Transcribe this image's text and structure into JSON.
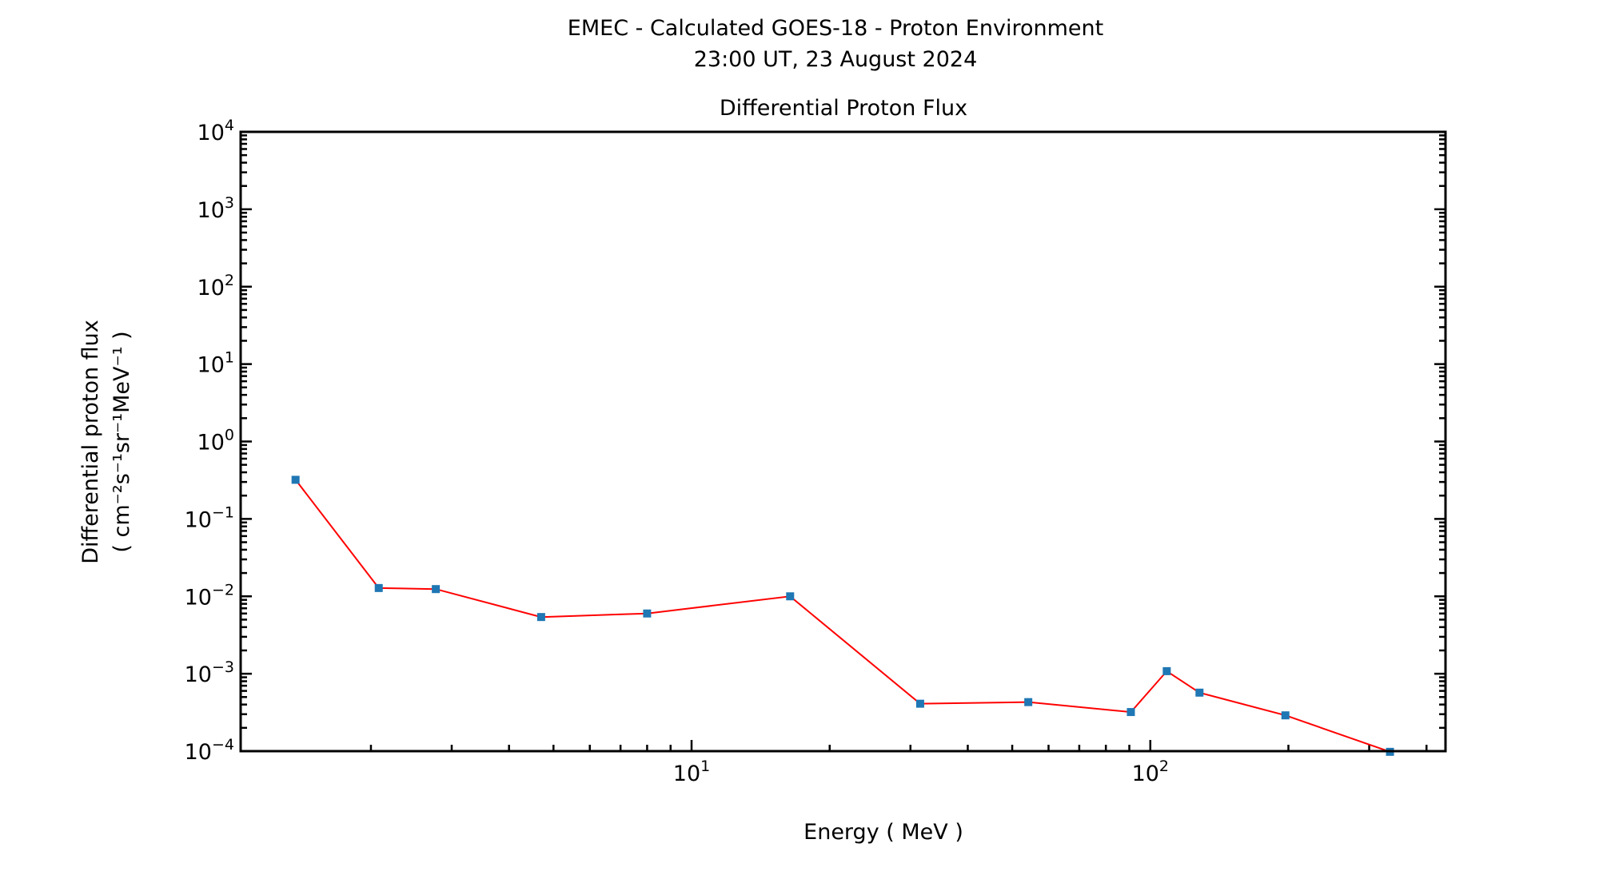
{
  "header": {
    "title": "EMEC - Calculated GOES-18 - Proton Environment",
    "subtitle": "23:00 UT, 23 August 2024"
  },
  "chart_data": {
    "type": "line",
    "title": "Differential Proton Flux",
    "xlabel": "Energy ( MeV )",
    "ylabel_line1": "Differential proton flux",
    "ylabel_line2": "( cm⁻²s⁻¹sr⁻¹MeV⁻¹ )",
    "xscale": "log",
    "yscale": "log",
    "xlim": [
      1.04,
      440
    ],
    "ylim": [
      0.0001,
      10000
    ],
    "x_ticks": [
      {
        "base": "10",
        "exp": "1",
        "value": 10
      },
      {
        "base": "10",
        "exp": "2",
        "value": 100
      }
    ],
    "y_ticks": [
      {
        "base": "10",
        "exp": "4",
        "value": 10000
      },
      {
        "base": "10",
        "exp": "3",
        "value": 1000
      },
      {
        "base": "10",
        "exp": "2",
        "value": 100
      },
      {
        "base": "10",
        "exp": "1",
        "value": 10
      },
      {
        "base": "10",
        "exp": "0",
        "value": 1
      },
      {
        "base": "10",
        "exp": "−1",
        "value": 0.1
      },
      {
        "base": "10",
        "exp": "−2",
        "value": 0.01
      },
      {
        "base": "10",
        "exp": "−3",
        "value": 0.001
      },
      {
        "base": "10",
        "exp": "−4",
        "value": 0.0001
      }
    ],
    "grid": false,
    "line_color": "#ff0000",
    "marker_color": "#1f77b4",
    "series": [
      {
        "x": [
          1.37,
          2.08,
          2.77,
          4.7,
          8.0,
          16.4,
          31.5,
          54.2,
          90.7,
          108.6,
          128,
          197,
          333
        ],
        "y": [
          0.32,
          0.0128,
          0.0124,
          0.0054,
          0.006,
          0.01,
          0.00041,
          0.00043,
          0.00032,
          0.00108,
          0.00057,
          0.00029,
          9.8e-05
        ]
      }
    ]
  }
}
